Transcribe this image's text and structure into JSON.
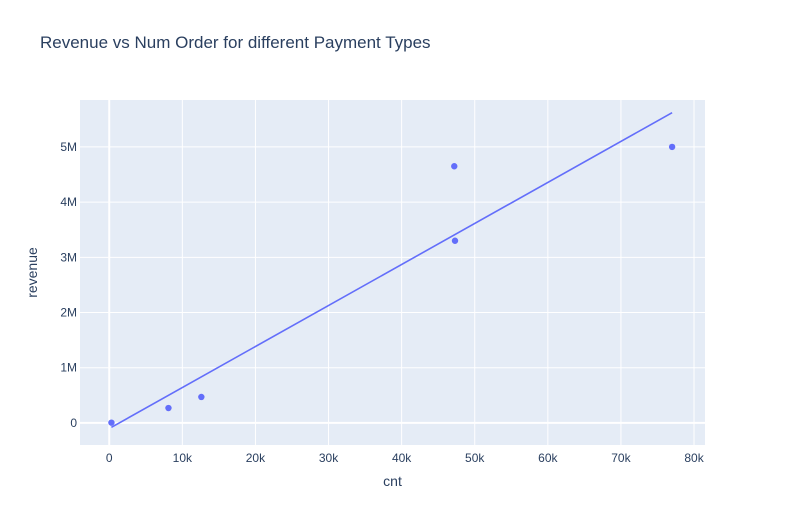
{
  "chart_data": {
    "type": "scatter",
    "title": "Revenue vs Num Order for different Payment Types",
    "xlabel": "cnt",
    "ylabel": "revenue",
    "xlim": [
      -4000,
      81500
    ],
    "ylim": [
      -400000,
      5850000
    ],
    "x_ticks": [
      0,
      10000,
      20000,
      30000,
      40000,
      50000,
      60000,
      70000,
      80000
    ],
    "x_tick_labels": [
      "0",
      "10k",
      "20k",
      "30k",
      "40k",
      "50k",
      "60k",
      "70k",
      "80k"
    ],
    "y_ticks": [
      0,
      1000000,
      2000000,
      3000000,
      4000000,
      5000000
    ],
    "y_tick_labels": [
      "0",
      "1M",
      "2M",
      "3M",
      "4M",
      "5M"
    ],
    "grid": true,
    "series": [
      {
        "mode": "markers",
        "x": [
          300,
          8100,
          12600,
          47300,
          47200,
          77000
        ],
        "y": [
          5000,
          270000,
          470000,
          3300000,
          4650000,
          5000000
        ]
      },
      {
        "mode": "lines",
        "x": [
          300,
          77000
        ],
        "y": [
          -80000,
          5620000
        ]
      }
    ],
    "colors": {
      "marker": "#636efa",
      "plot_bg": "#e5ecf6",
      "grid": "#ffffff",
      "text": "#2a3f5f"
    }
  }
}
